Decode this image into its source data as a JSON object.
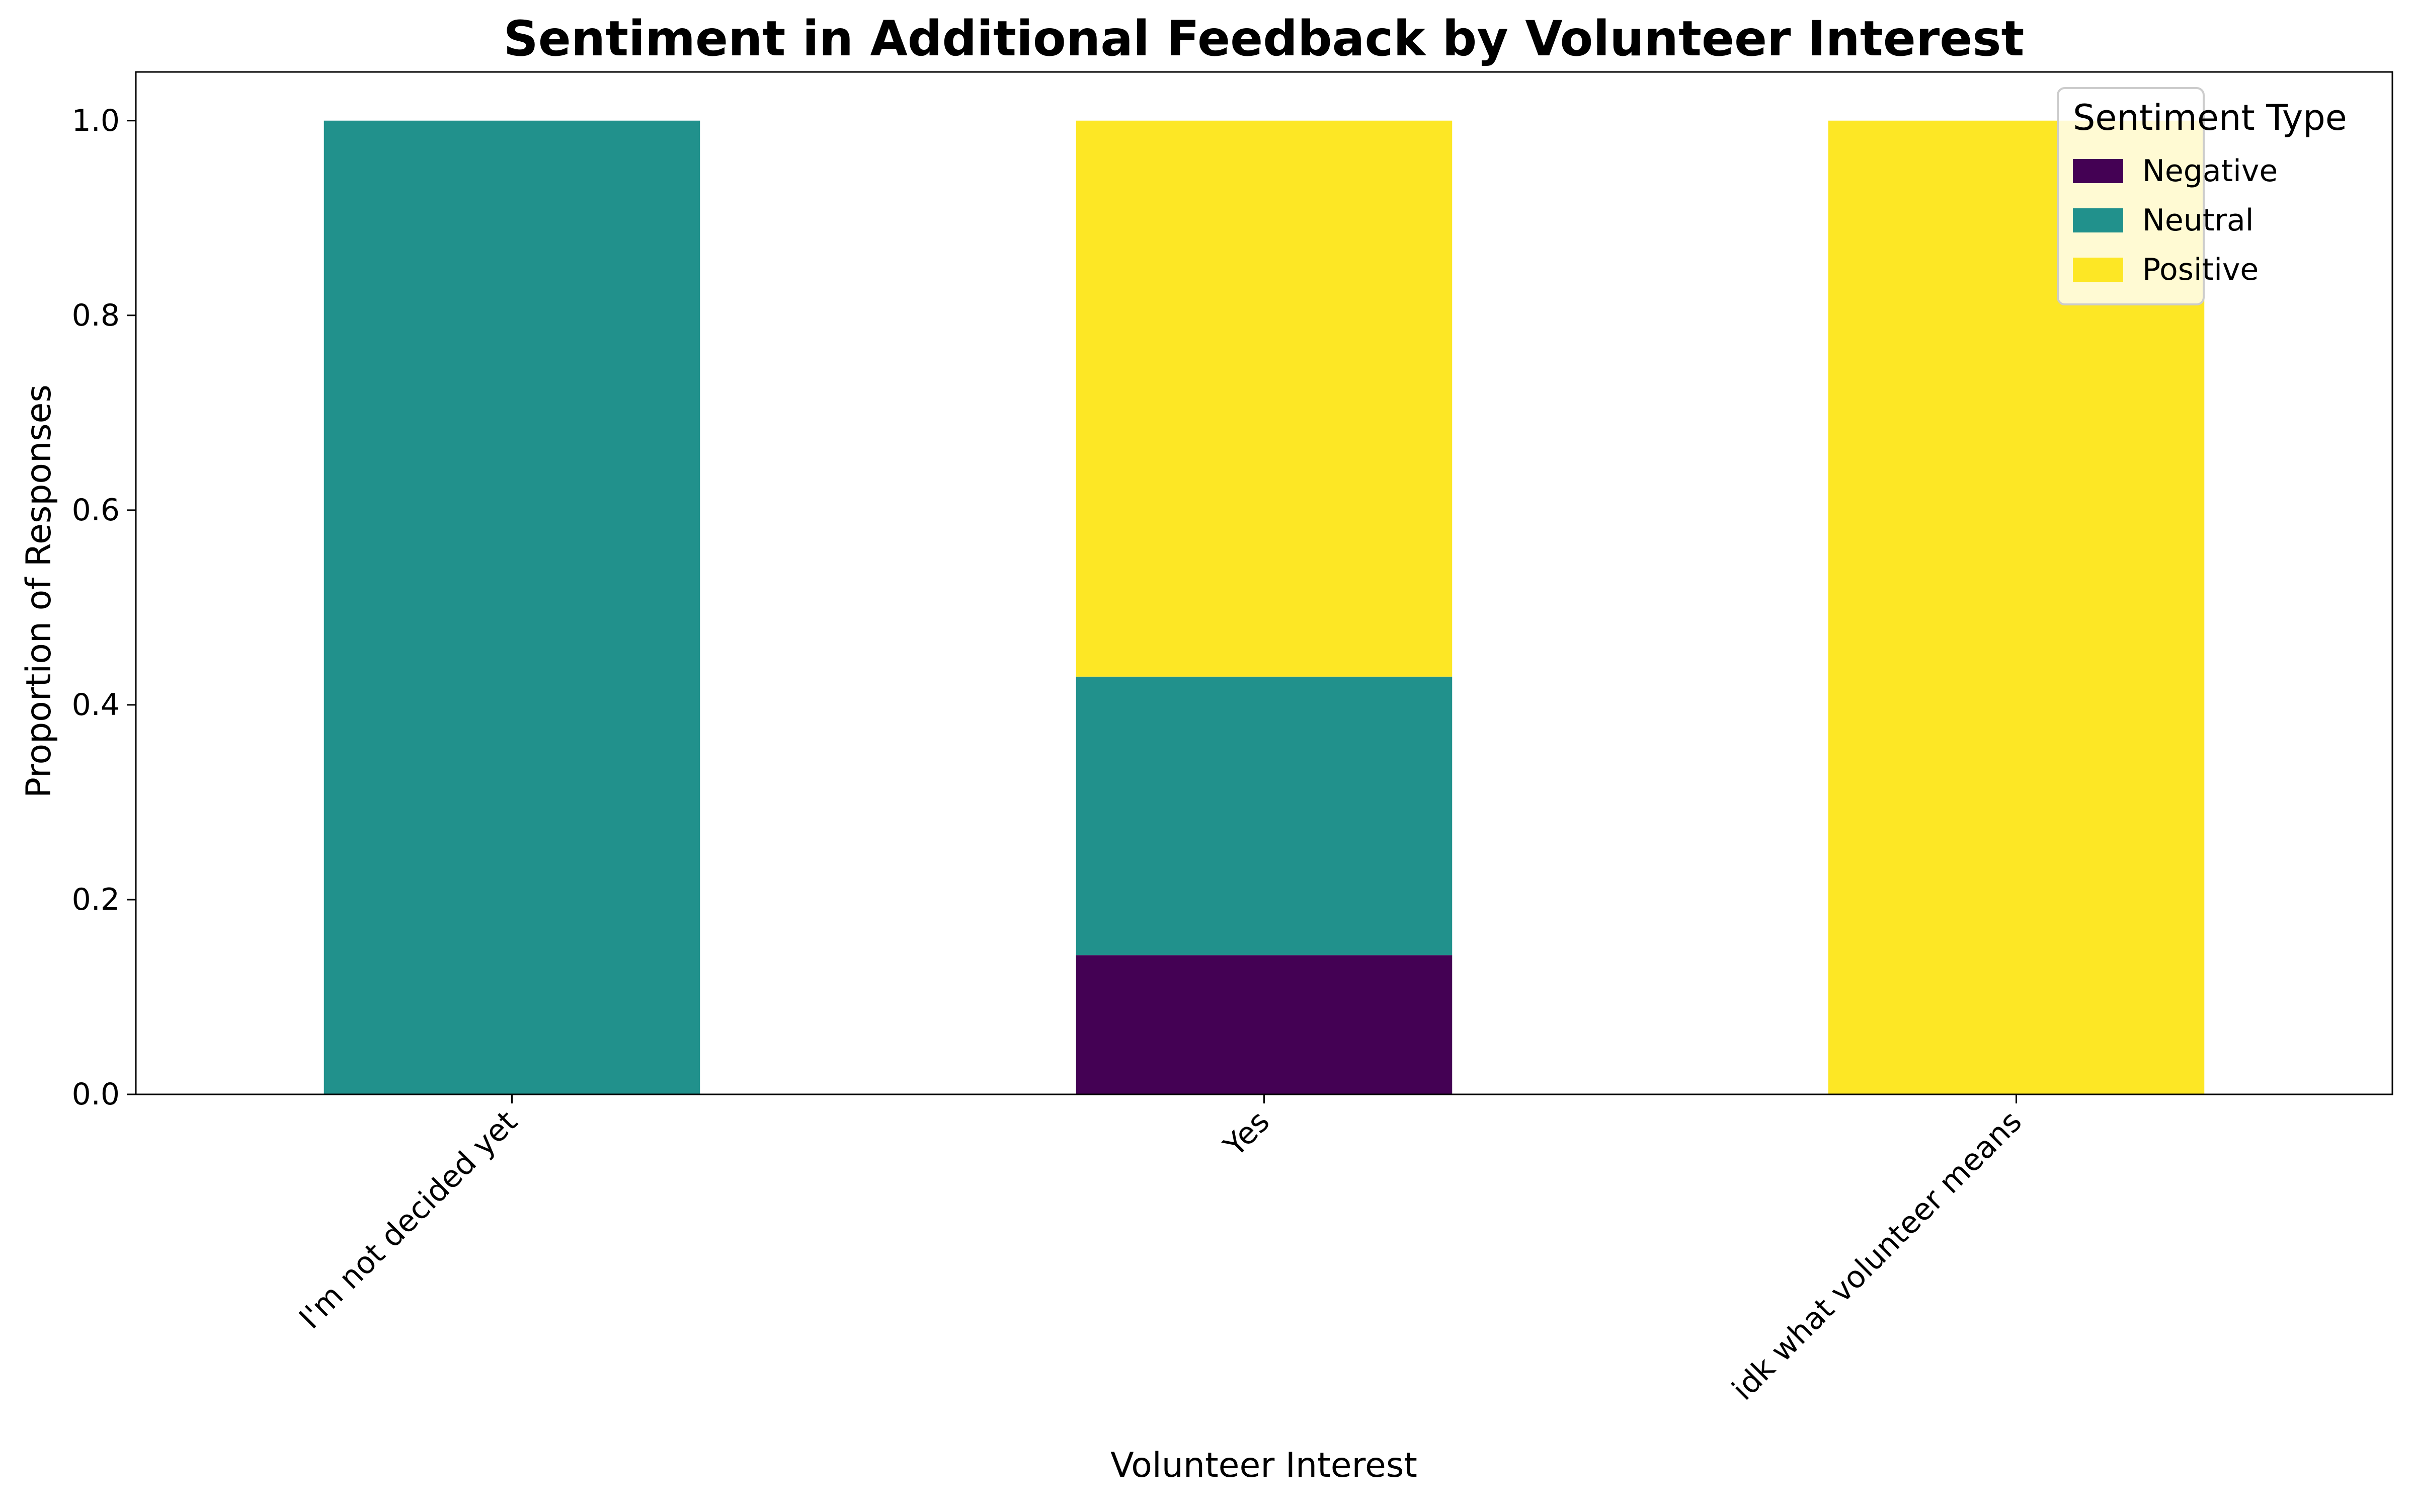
{
  "chart_data": {
    "type": "bar",
    "stacked": true,
    "title": "Sentiment in Additional Feedback by Volunteer Interest",
    "xlabel": "Volunteer Interest",
    "ylabel": "Proportion of Responses",
    "categories": [
      "I'm not decided yet",
      "Yes",
      "idk what volunteer means"
    ],
    "series": [
      {
        "name": "Negative",
        "color": "#440154",
        "values": [
          0.0,
          0.143,
          0.0
        ]
      },
      {
        "name": "Neutral",
        "color": "#21918c",
        "values": [
          1.0,
          0.286,
          0.0
        ]
      },
      {
        "name": "Positive",
        "color": "#fde725",
        "values": [
          0.0,
          0.571,
          1.0
        ]
      }
    ],
    "ylim": [
      0,
      1.05
    ],
    "yticks": [
      "0.0",
      "0.2",
      "0.4",
      "0.6",
      "0.8",
      "1.0"
    ],
    "grid": false,
    "legend": {
      "title": "Sentiment Type",
      "position": "top-right"
    }
  }
}
